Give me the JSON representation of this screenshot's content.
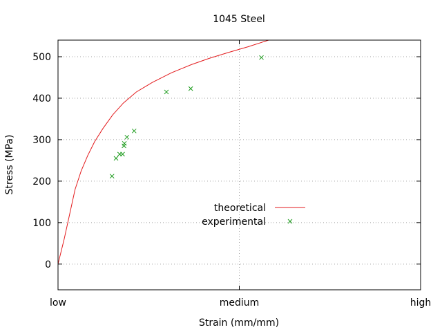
{
  "chart_data": {
    "type": "scatter",
    "title": "1045 Steel",
    "xlabel": "Strain (mm/mm)",
    "ylabel": "Stress (MPa)",
    "x_tick_labels": [
      "low",
      "medium",
      "high"
    ],
    "y_ticks": [
      0,
      100,
      200,
      300,
      400,
      500
    ],
    "xlim": [
      0,
      1
    ],
    "ylim": [
      -62,
      540
    ],
    "grid": true,
    "legend_position": "center-right",
    "series": [
      {
        "name": "theoretical",
        "style": "line",
        "color": "#e31a1c",
        "points": [
          [
            0.0,
            0
          ],
          [
            0.017,
            60
          ],
          [
            0.032,
            120
          ],
          [
            0.047,
            180
          ],
          [
            0.064,
            225
          ],
          [
            0.082,
            262
          ],
          [
            0.101,
            295
          ],
          [
            0.124,
            327
          ],
          [
            0.151,
            360
          ],
          [
            0.18,
            388
          ],
          [
            0.216,
            415
          ],
          [
            0.26,
            438
          ],
          [
            0.312,
            461
          ],
          [
            0.368,
            481
          ],
          [
            0.417,
            496
          ],
          [
            0.469,
            510
          ],
          [
            0.524,
            524
          ],
          [
            0.581,
            540
          ]
        ]
      },
      {
        "name": "experimental",
        "style": "marker-x",
        "color": "#1a9a1a",
        "points": [
          [
            0.149,
            212
          ],
          [
            0.16,
            255
          ],
          [
            0.17,
            265
          ],
          [
            0.178,
            265
          ],
          [
            0.182,
            285
          ],
          [
            0.183,
            291
          ],
          [
            0.19,
            306
          ],
          [
            0.21,
            321
          ],
          [
            0.299,
            415
          ],
          [
            0.366,
            423
          ],
          [
            0.561,
            498
          ]
        ]
      }
    ]
  }
}
